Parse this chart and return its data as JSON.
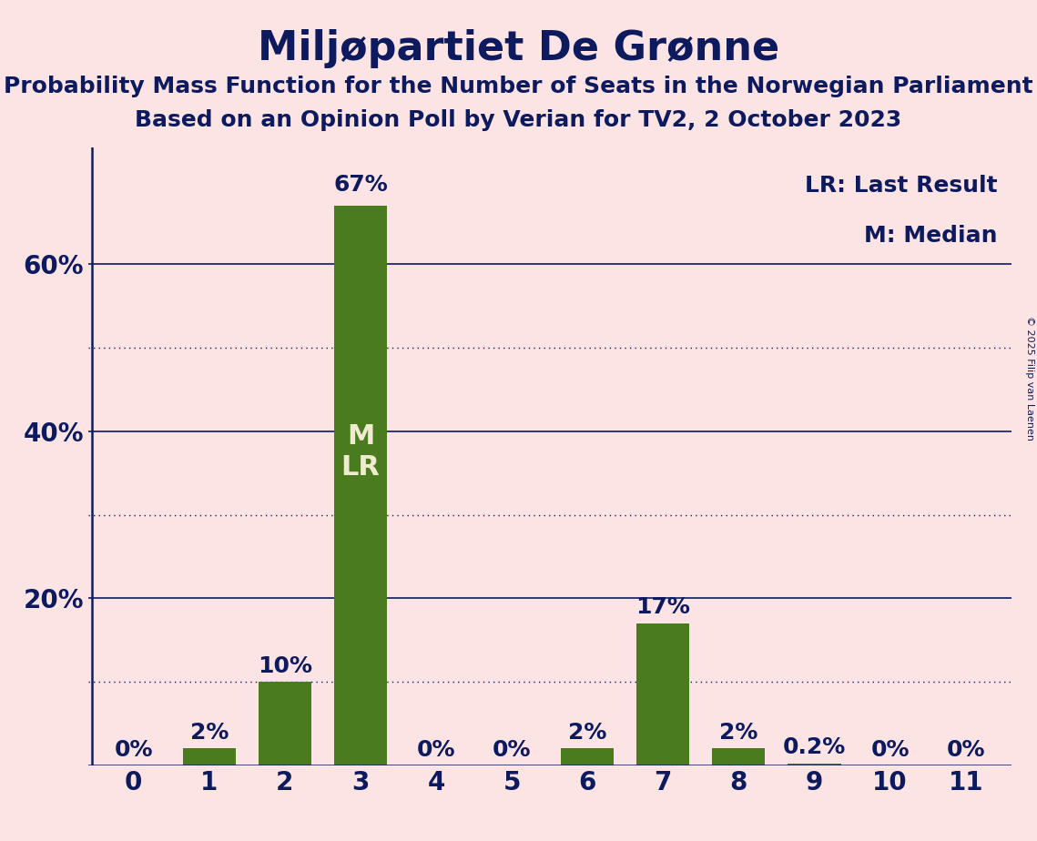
{
  "title": "Miljøpartiet De Grønne",
  "subtitle1": "Probability Mass Function for the Number of Seats in the Norwegian Parliament",
  "subtitle2": "Based on an Opinion Poll by Verian for TV2, 2 October 2023",
  "copyright": "© 2025 Filip van Laenen",
  "categories": [
    0,
    1,
    2,
    3,
    4,
    5,
    6,
    7,
    8,
    9,
    10,
    11
  ],
  "values": [
    0.0,
    0.02,
    0.1,
    0.67,
    0.0,
    0.0,
    0.02,
    0.17,
    0.02,
    0.002,
    0.0,
    0.0
  ],
  "labels": [
    "0%",
    "2%",
    "10%",
    "67%",
    "0%",
    "0%",
    "2%",
    "17%",
    "2%",
    "0.2%",
    "0%",
    "0%"
  ],
  "bar_color": "#4a7c1f",
  "background_color": "#fce4e4",
  "text_color": "#0d1a5e",
  "grid_color": "#0d1a5e",
  "median_bar": 3,
  "last_result_bar": 3,
  "bar_label_color_inside": "#f0ead0",
  "bar_label_color_outside": "#0d1a5e",
  "yticks": [
    0.2,
    0.4,
    0.6
  ],
  "ytick_labels": [
    "20%",
    "40%",
    "60%"
  ],
  "solid_gridlines": [
    0.2,
    0.4,
    0.6
  ],
  "dotted_gridlines": [
    0.1,
    0.3,
    0.5
  ],
  "legend_lr": "LR: Last Result",
  "legend_m": "M: Median",
  "title_fontsize": 32,
  "subtitle_fontsize": 18,
  "axis_fontsize": 20,
  "bar_label_fontsize": 18,
  "legend_fontsize": 18,
  "inside_label_fontsize": 22,
  "ylim_max": 0.74
}
